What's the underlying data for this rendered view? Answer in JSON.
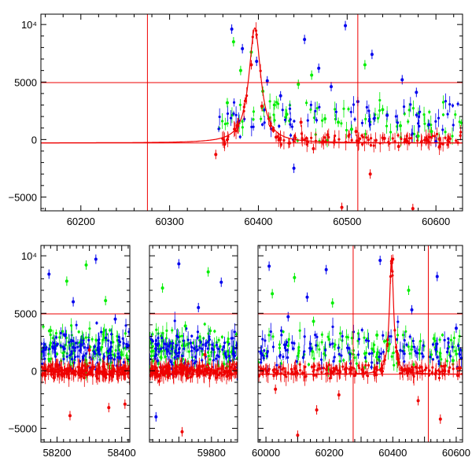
{
  "chart_data": [
    {
      "type": "scatter",
      "title": "",
      "xlabel": "",
      "ylabel": "",
      "xlim": [
        60155,
        60630
      ],
      "ylim": [
        -6200,
        10900
      ],
      "x_ticks": [
        60200,
        60300,
        60400,
        60500,
        60600
      ],
      "x_tick_labels": [
        "60200",
        "60300",
        "60400",
        "60500",
        "60600"
      ],
      "y_ticks": [
        -5000,
        0,
        5000,
        10000
      ],
      "y_tick_labels": [
        "−5000",
        "0",
        "5000",
        "10⁴"
      ],
      "grid": false,
      "legend": "none",
      "series": [
        {
          "color": "#00ee00",
          "points": [
            [
              60365,
              3200
            ],
            [
              60372,
              8500
            ],
            [
              60380,
              6000
            ],
            [
              60392,
              7600
            ],
            [
              60405,
              4200
            ],
            [
              60418,
              3000
            ],
            [
              60432,
              2200
            ],
            [
              60445,
              4800
            ],
            [
              60460,
              5600
            ],
            [
              60475,
              1800
            ],
            [
              60490,
              1500
            ],
            [
              60505,
              900
            ],
            [
              60520,
              6500
            ],
            [
              60540,
              2600
            ],
            [
              60560,
              1200
            ],
            [
              60580,
              300
            ],
            [
              60595,
              700
            ]
          ]
        },
        {
          "color": "#0000ee",
          "points": [
            [
              60370,
              9600
            ],
            [
              60382,
              7900
            ],
            [
              60398,
              6800
            ],
            [
              60410,
              5100
            ],
            [
              60425,
              3800
            ],
            [
              60440,
              -2500
            ],
            [
              60452,
              8700
            ],
            [
              60468,
              6200
            ],
            [
              60482,
              4600
            ],
            [
              60498,
              9900
            ],
            [
              60512,
              3300
            ],
            [
              60528,
              7400
            ],
            [
              60545,
              2100
            ],
            [
              60562,
              5200
            ],
            [
              60578,
              4100
            ],
            [
              60592,
              1300
            ],
            [
              60600,
              -200
            ]
          ]
        },
        {
          "color": "#ee0000",
          "points": [
            [
              60352,
              -1300
            ],
            [
              60362,
              -400
            ],
            [
              60376,
              1200
            ],
            [
              60392,
              6500
            ],
            [
              60404,
              2900
            ],
            [
              60420,
              200
            ],
            [
              60435,
              -300
            ],
            [
              60448,
              1500
            ],
            [
              60462,
              -800
            ],
            [
              60478,
              400
            ],
            [
              60494,
              -5900
            ],
            [
              60510,
              700
            ],
            [
              60526,
              -3000
            ],
            [
              60542,
              100
            ],
            [
              60558,
              -600
            ],
            [
              60574,
              -6000
            ],
            [
              60590,
              0
            ]
          ]
        }
      ],
      "model_curve": {
        "color": "#ee0000",
        "peak_x": 60396,
        "peak_y": 9700,
        "baseline": -300
      },
      "reference_lines": {
        "horizontal": [
          4950,
          -300
        ],
        "vertical": [
          60275,
          60512
        ],
        "color": "#ee0000"
      }
    },
    {
      "type": "scatter",
      "title": "",
      "xlabel": "",
      "ylabel": "",
      "ylim": [
        -6200,
        10900
      ],
      "segments": [
        {
          "xlim": [
            58150,
            58425
          ],
          "x_ticks": [
            58200,
            58400
          ],
          "x_tick_labels": [
            "58200",
            "58400"
          ]
        },
        {
          "xlim": [
            59610,
            59880
          ],
          "x_ticks": [
            59800
          ],
          "x_tick_labels": [
            "59800"
          ]
        },
        {
          "xlim": [
            59975,
            60620
          ],
          "x_ticks": [
            60000,
            60200,
            60400,
            60600
          ],
          "x_tick_labels": [
            "60000",
            "60200",
            "60400",
            "60600"
          ]
        }
      ],
      "y_ticks": [
        -5000,
        0,
        5000,
        10000
      ],
      "y_tick_labels": [
        "−5000",
        "0",
        "5000",
        "10⁴"
      ],
      "grid": false,
      "legend": "none",
      "series": [
        {
          "color": "#00ee00",
          "points": [
            [
              58180,
              3500
            ],
            [
              58230,
              7800
            ],
            [
              58290,
              9200
            ],
            [
              58350,
              6100
            ],
            [
              58400,
              1400
            ],
            [
              59650,
              7200
            ],
            [
              59720,
              3900
            ],
            [
              59790,
              8600
            ],
            [
              59850,
              2500
            ],
            [
              60020,
              6700
            ],
            [
              60090,
              8100
            ],
            [
              60150,
              4300
            ],
            [
              60210,
              5900
            ],
            [
              60350,
              3100
            ],
            [
              60450,
              7000
            ],
            [
              60530,
              2800
            ],
            [
              60590,
              900
            ]
          ]
        },
        {
          "color": "#0000ee",
          "points": [
            [
              58175,
              8400
            ],
            [
              58250,
              6000
            ],
            [
              58320,
              9700
            ],
            [
              58380,
              4500
            ],
            [
              58420,
              2200
            ],
            [
              59630,
              -4000
            ],
            [
              59700,
              9300
            ],
            [
              59760,
              5500
            ],
            [
              59830,
              7700
            ],
            [
              60010,
              9100
            ],
            [
              60070,
              4700
            ],
            [
              60130,
              6400
            ],
            [
              60190,
              8800
            ],
            [
              60360,
              9600
            ],
            [
              60460,
              5300
            ],
            [
              60540,
              8200
            ],
            [
              60600,
              3700
            ]
          ]
        },
        {
          "color": "#ee0000",
          "points": [
            [
              58190,
              -600
            ],
            [
              58240,
              -3900
            ],
            [
              58300,
              1800
            ],
            [
              58360,
              -3200
            ],
            [
              58410,
              -2900
            ],
            [
              59640,
              -900
            ],
            [
              59710,
              -5300
            ],
            [
              59780,
              1400
            ],
            [
              59860,
              -300
            ],
            [
              60030,
              -1600
            ],
            [
              60100,
              -5600
            ],
            [
              60160,
              -3400
            ],
            [
              60230,
              -2100
            ],
            [
              60400,
              9700
            ],
            [
              60480,
              -2600
            ],
            [
              60550,
              -4200
            ],
            [
              60605,
              -400
            ]
          ]
        }
      ],
      "model_curve": {
        "color": "#ee0000",
        "peak_x": 60396,
        "peak_y": 9700,
        "baseline": -300
      },
      "reference_lines": {
        "horizontal": [
          4950,
          -300
        ],
        "vertical": [
          60275,
          60512
        ],
        "color": "#ee0000"
      }
    }
  ]
}
